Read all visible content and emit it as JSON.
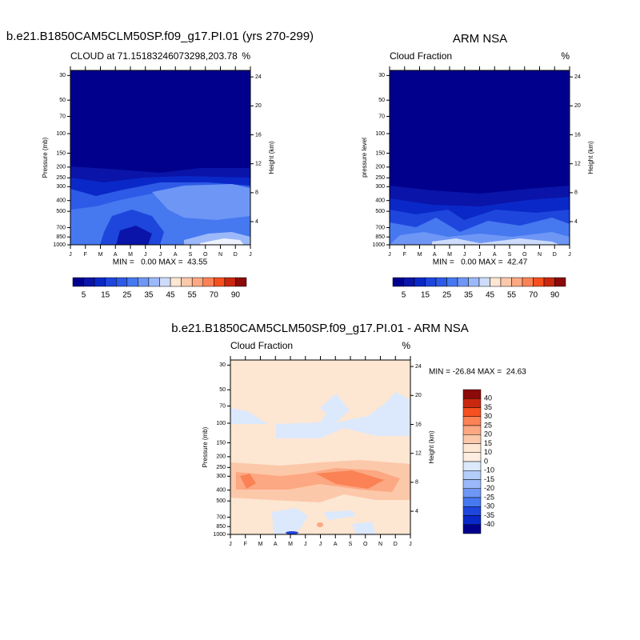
{
  "panels": [
    {
      "title": "b.e21.B1850CAM5CLM50SP.f09_g17.PI.01 (yrs 270-299)",
      "left_string": "CLOUD at 71.15183246073298,203.78",
      "right_string": "%",
      "y_label": "Pressure (mb)",
      "y2_label": "Height (km)",
      "months": [
        "J",
        "F",
        "M",
        "A",
        "M",
        "J",
        "J",
        "A",
        "S",
        "O",
        "N",
        "D",
        "J"
      ],
      "yticks": [
        30,
        50,
        70,
        100,
        150,
        200,
        250,
        300,
        400,
        500,
        700,
        850,
        1000
      ],
      "ylim": [
        1000,
        27
      ],
      "log_y": true,
      "y2ticks": [
        24,
        20,
        16,
        12,
        8,
        4
      ],
      "y2lim": [
        0.8,
        24.9
      ],
      "minmax": "MIN =   0.00 MAX =  43.55",
      "colorbar": {
        "labels": [
          5,
          15,
          25,
          35,
          45,
          55,
          70,
          90
        ],
        "colors": [
          "#00008c",
          "#0a14a8",
          "#0a28c8",
          "#1e46dc",
          "#2d5ae6",
          "#4678f0",
          "#6e96f5",
          "#9bb9fa",
          "#cddcfc",
          "#fde6d2",
          "#fcc8aa",
          "#fca882",
          "#fa8255",
          "#f5501e",
          "#c8280f",
          "#8c0a0a"
        ]
      }
    },
    {
      "title": "ARM NSA",
      "left_string": "Cloud Fraction",
      "right_string": "%",
      "y_label": "pressure level",
      "y2_label": "Height (km)",
      "months": [
        "J",
        "F",
        "M",
        "A",
        "M",
        "J",
        "J",
        "A",
        "S",
        "O",
        "N",
        "D",
        "J"
      ],
      "yticks": [
        30,
        50,
        70,
        100,
        150,
        200,
        250,
        300,
        400,
        500,
        700,
        850,
        1000
      ],
      "ylim": [
        1000,
        27
      ],
      "log_y": true,
      "y2ticks": [
        24,
        20,
        16,
        12,
        8,
        4
      ],
      "y2lim": [
        0.8,
        24.9
      ],
      "minmax": "MIN =   0.00 MAX =  42.47",
      "colorbar": {
        "labels": [
          5,
          15,
          25,
          35,
          45,
          55,
          70,
          90
        ],
        "colors": [
          "#00008c",
          "#0a14a8",
          "#0a28c8",
          "#1e46dc",
          "#2d5ae6",
          "#4678f0",
          "#6e96f5",
          "#9bb9fa",
          "#cddcfc",
          "#fde6d2",
          "#fcc8aa",
          "#fca882",
          "#fa8255",
          "#f5501e",
          "#c8280f",
          "#8c0a0a"
        ]
      }
    },
    {
      "title": "b.e21.B1850CAM5CLM50SP.f09_g17.PI.01 - ARM NSA",
      "left_string": "Cloud Fraction",
      "right_string": "%",
      "y_label": "Pressure (mb)",
      "y2_label": "Height (km)",
      "months": [
        "J",
        "F",
        "M",
        "A",
        "M",
        "J",
        "J",
        "A",
        "S",
        "O",
        "N",
        "D",
        "J"
      ],
      "yticks": [
        30,
        50,
        70,
        100,
        150,
        200,
        250,
        300,
        400,
        500,
        700,
        850,
        1000
      ],
      "ylim": [
        1000,
        27
      ],
      "log_y": true,
      "y2ticks": [
        24,
        20,
        16,
        12,
        8,
        4
      ],
      "y2lim": [
        0.8,
        24.9
      ],
      "minmax": "MIN = -26.84 MAX =  24.63",
      "colorbar": {
        "labels": [
          40,
          35,
          30,
          25,
          20,
          15,
          10,
          0,
          -10,
          -15,
          -20,
          -25,
          -30,
          -35,
          -40
        ],
        "colors": [
          "#8c0a0a",
          "#c8280f",
          "#f5501e",
          "#fa8255",
          "#fca882",
          "#fcc8aa",
          "#fde6d2",
          "#fdeee2",
          "#dce9fc",
          "#b4cdfa",
          "#9bb9fa",
          "#6e96f5",
          "#4678f0",
          "#1e46dc",
          "#0a28c8",
          "#00008c"
        ]
      }
    }
  ]
}
